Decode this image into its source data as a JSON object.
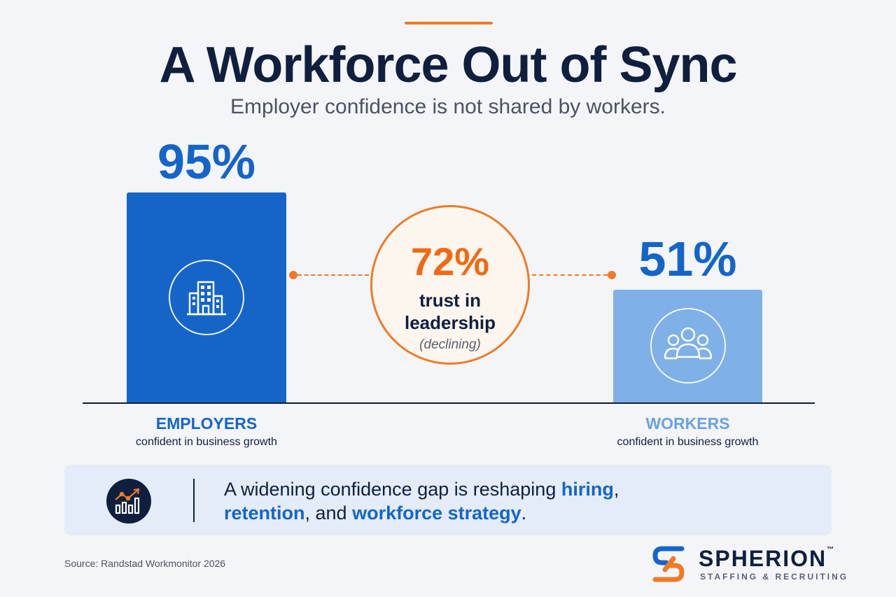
{
  "header": {
    "title": "A Workforce Out of Sync",
    "subtitle": "Employer confidence is not shared by workers."
  },
  "chart_data": {
    "type": "bar",
    "categories": [
      "EMPLOYERS",
      "WORKERS"
    ],
    "values": [
      95,
      51
    ],
    "value_labels": [
      "95%",
      "51%"
    ],
    "category_sublabels": [
      "confident in business growth",
      "confident in business growth"
    ],
    "colors": [
      "#1565c8",
      "#7fb0e8"
    ],
    "icons": [
      "buildings-icon",
      "people-group-icon"
    ],
    "ylim": [
      0,
      100
    ],
    "grid": false,
    "annotation": {
      "value": "72%",
      "line1": "trust in",
      "line2": "leadership",
      "note": "(declining)",
      "color": "#ef7a26"
    }
  },
  "callout": {
    "icon": "rising-chart-icon",
    "text_before": "A widening confidence gap is reshaping ",
    "hl1": "hiring",
    "text_mid1": ",",
    "hl2": "retention",
    "text_mid2": ", and ",
    "hl3": "workforce strategy",
    "text_end": "."
  },
  "source": "Source: Randstad Workmonitor 2026",
  "brand": {
    "name": "SPHERION",
    "tm": "™",
    "tagline": "STAFFING & RECRUITING",
    "colors": [
      "#1565c8",
      "#ef7a26"
    ]
  }
}
